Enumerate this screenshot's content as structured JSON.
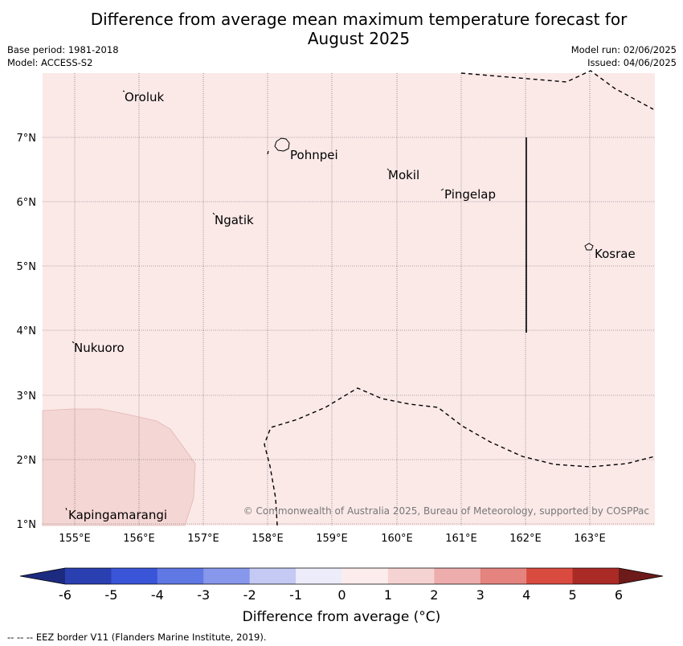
{
  "title_line1": "Difference from average mean maximum temperature forecast for",
  "title_line2": "August 2025",
  "base_period": "Base period: 1981-2018",
  "model": "Model: ACCESS-S2",
  "model_run": "Model run: 02/06/2025",
  "issued": "Issued: 04/06/2025",
  "copyright": "© Commonwealth of Australia 2025, Bureau of Meteorology, supported by COSPPac",
  "lat_labels": [
    "7°N",
    "6°N",
    "5°N",
    "4°N",
    "3°N",
    "2°N",
    "1°N"
  ],
  "lon_labels": [
    "155°E",
    "156°E",
    "157°E",
    "158°E",
    "159°E",
    "160°E",
    "161°E",
    "162°E",
    "163°E"
  ],
  "places": [
    "Oroluk",
    "Pohnpei",
    "Mokil",
    "Pingelap",
    "Ngatik",
    "Kosrae",
    "Nukuoro",
    "Kapingamarangi"
  ],
  "colorbar": {
    "label": "Difference from average (°C)",
    "ticks": [
      "-6",
      "-5",
      "-4",
      "-3",
      "-2",
      "-1",
      "0",
      "1",
      "2",
      "3",
      "4",
      "5",
      "6"
    ],
    "colors": [
      "#1c2a80",
      "#2a3fb0",
      "#3a55d8",
      "#5f78e4",
      "#8797ec",
      "#c4caf4",
      "#ececfb",
      "#fdecec",
      "#f6d3d3",
      "#eeadad",
      "#e5837f",
      "#d94a3f",
      "#aa2a26",
      "#6d1a1a"
    ]
  },
  "map_colors": {
    "background_anomaly": "#fbe9e8",
    "anomaly_1_2": "#f4d6d4"
  },
  "footer": "--  --  -- EEZ border V11 (Flanders Marine Institute, 2019)."
}
